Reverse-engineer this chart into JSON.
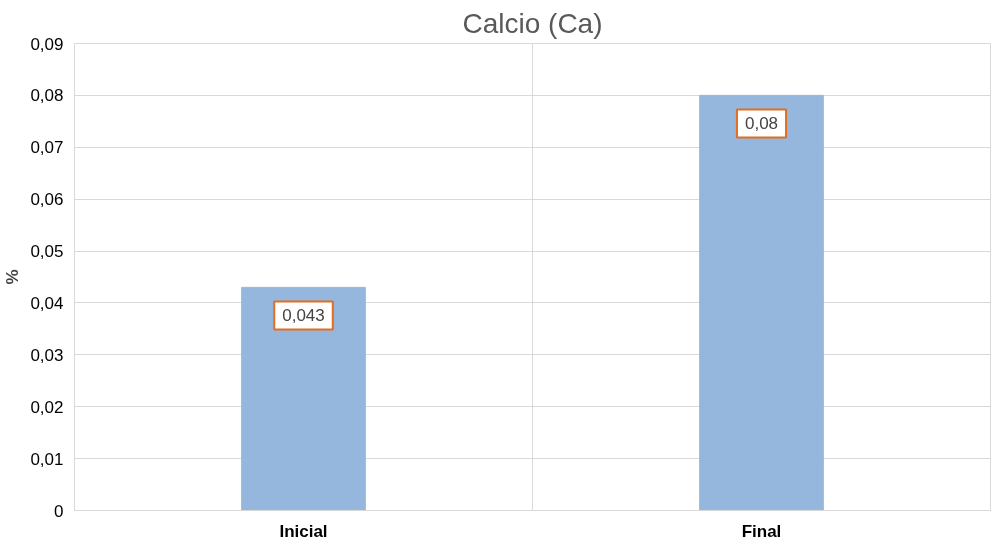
{
  "chart_data": {
    "type": "bar",
    "title": "Calcio (Ca)",
    "ylabel": "%",
    "categories": [
      "Inicial",
      "Final"
    ],
    "values": [
      0.043,
      0.08
    ],
    "color": "#95b7de",
    "value_labels": [
      "0,043",
      "0,08"
    ],
    "ylim": [
      0,
      0.09
    ],
    "yticks": [
      0,
      {
        "value": 0.01,
        "label": "0,01"
      },
      {
        "value": 0.02,
        "label": "0,02"
      },
      {
        "value": 0.03,
        "label": "0,03"
      },
      {
        "value": 0.04,
        "label": "0,04"
      },
      {
        "value": 0.05,
        "label": "0,05"
      },
      {
        "value": 0.06,
        "label": "0,06"
      },
      {
        "value": 0.07,
        "label": "0,07"
      },
      {
        "value": 0.08,
        "label": "0,08"
      },
      {
        "value": 0.09,
        "label": "0,09"
      }
    ],
    "grid": true
  }
}
